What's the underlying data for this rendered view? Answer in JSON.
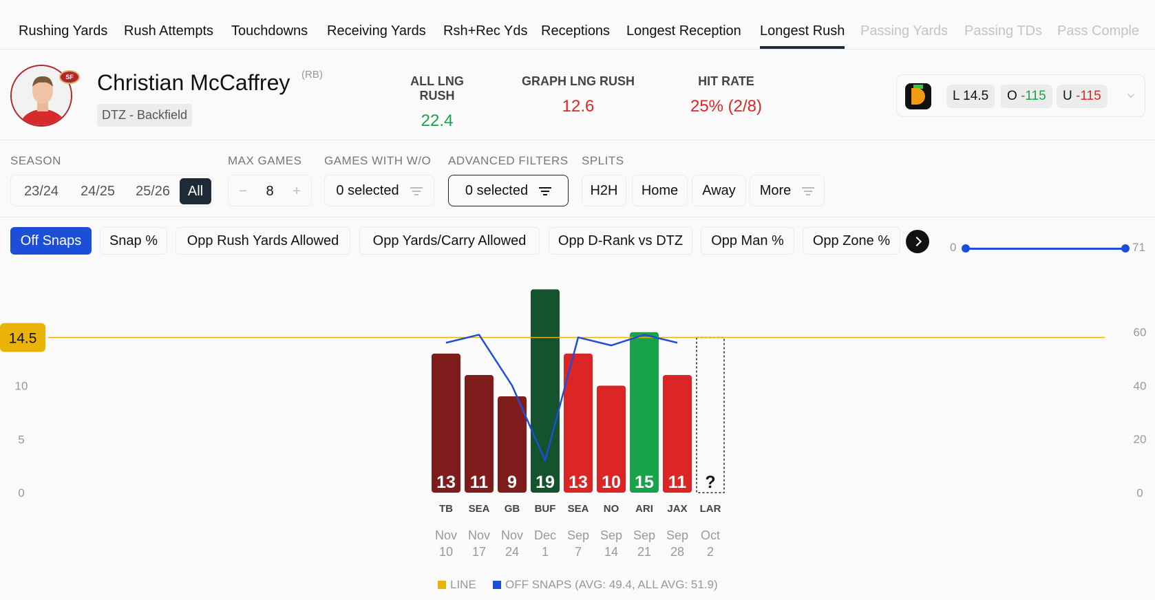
{
  "tabs": [
    {
      "label": "Rushing Yards",
      "state": "normal"
    },
    {
      "label": "Rush Attempts",
      "state": "normal"
    },
    {
      "label": "Touchdowns",
      "state": "normal"
    },
    {
      "label": "Receiving Yards",
      "state": "normal"
    },
    {
      "label": "Rsh+Rec Yds",
      "state": "normal"
    },
    {
      "label": "Receptions",
      "state": "normal"
    },
    {
      "label": "Longest Reception",
      "state": "normal"
    },
    {
      "label": "Longest Rush",
      "state": "active"
    },
    {
      "label": "Passing Yards",
      "state": "dim"
    },
    {
      "label": "Passing TDs",
      "state": "dim"
    },
    {
      "label": "Pass Comple",
      "state": "dim"
    }
  ],
  "player": {
    "name": "Christian McCaffrey",
    "position": "(RB)",
    "team_label": "DTZ - Backfield",
    "team_logo_text": "SF"
  },
  "stats": [
    {
      "label": "ALL LNG RUSH",
      "value": "22.4",
      "color": "green"
    },
    {
      "label": "GRAPH LNG RUSH",
      "value": "12.6",
      "color": "red"
    },
    {
      "label": "HIT RATE",
      "value": "25% (2/8)",
      "color": "red"
    }
  ],
  "odds": {
    "book_icon": "draftkings-icon",
    "line_prefix": "L",
    "line_value": "14.5",
    "over_prefix": "O",
    "over_value": "-115",
    "under_prefix": "U",
    "under_value": "-115"
  },
  "filters": {
    "season_label": "SEASON",
    "seasons": [
      "23/24",
      "24/25",
      "25/26",
      "All"
    ],
    "season_selected": "All",
    "max_games_label": "MAX GAMES",
    "max_games_value": "8",
    "minus": "−",
    "plus": "+",
    "games_with_label": "GAMES WITH W/O",
    "games_with_value": "0 selected",
    "advanced_label": "ADVANCED FILTERS",
    "advanced_value": "0 selected",
    "splits_label": "SPLITS",
    "splits": [
      "H2H",
      "Home",
      "Away",
      "More"
    ]
  },
  "metrics": {
    "chips": [
      "Off Snaps",
      "Snap %",
      "Opp Rush Yards Allowed",
      "Opp Yards/Carry Allowed",
      "Opp D-Rank vs DTZ",
      "Opp Man %",
      "Opp Zone %"
    ],
    "selected": "Off Snaps",
    "range_min": "0",
    "range_max": "71"
  },
  "colors": {
    "line": "#eab308",
    "snaps": "#1d4ed8",
    "hit_dark": "#14532d",
    "hit": "#16a34a",
    "miss_dark": "#7f1d1d",
    "miss": "#dc2626"
  },
  "chart_data": {
    "type": "bar",
    "line_label": "14.5",
    "line_value": 14.5,
    "ylim": [
      0,
      19
    ],
    "y_ticks": [
      "0",
      "5",
      "10"
    ],
    "y2_ticks": [
      "0",
      "20",
      "40",
      "60"
    ],
    "y2lim": [
      0,
      71
    ],
    "games": [
      {
        "month": "Nov",
        "day": "10",
        "opp": "TB",
        "value": 13,
        "label": "13",
        "snaps": 56,
        "shade": "dark"
      },
      {
        "month": "Nov",
        "day": "17",
        "opp": "SEA",
        "value": 11,
        "label": "11",
        "snaps": 59,
        "shade": "dark"
      },
      {
        "month": "Nov",
        "day": "24",
        "opp": "GB",
        "value": 9,
        "label": "9",
        "snaps": 40,
        "shade": "dark"
      },
      {
        "month": "Dec",
        "day": "1",
        "opp": "BUF",
        "value": 19,
        "label": "19",
        "snaps": 12,
        "shade": "dark"
      },
      {
        "month": "Sep",
        "day": "7",
        "opp": "SEA",
        "value": 13,
        "label": "13",
        "snaps": 58,
        "shade": "light"
      },
      {
        "month": "Sep",
        "day": "14",
        "opp": "NO",
        "value": 10,
        "label": "10",
        "snaps": 55,
        "shade": "light"
      },
      {
        "month": "Sep",
        "day": "21",
        "opp": "ARI",
        "value": 15,
        "label": "15",
        "snaps": 59,
        "shade": "light"
      },
      {
        "month": "Sep",
        "day": "28",
        "opp": "JAX",
        "value": 11,
        "label": "11",
        "snaps": 56,
        "shade": "light"
      },
      {
        "month": "Oct",
        "day": "2",
        "opp": "LAR",
        "value": null,
        "label": "?",
        "snaps": null,
        "shade": "upcoming"
      }
    ],
    "legend": {
      "line": "LINE",
      "snaps": "OFF SNAPS (AVG: 49.4, ALL AVG: 51.9)"
    }
  }
}
